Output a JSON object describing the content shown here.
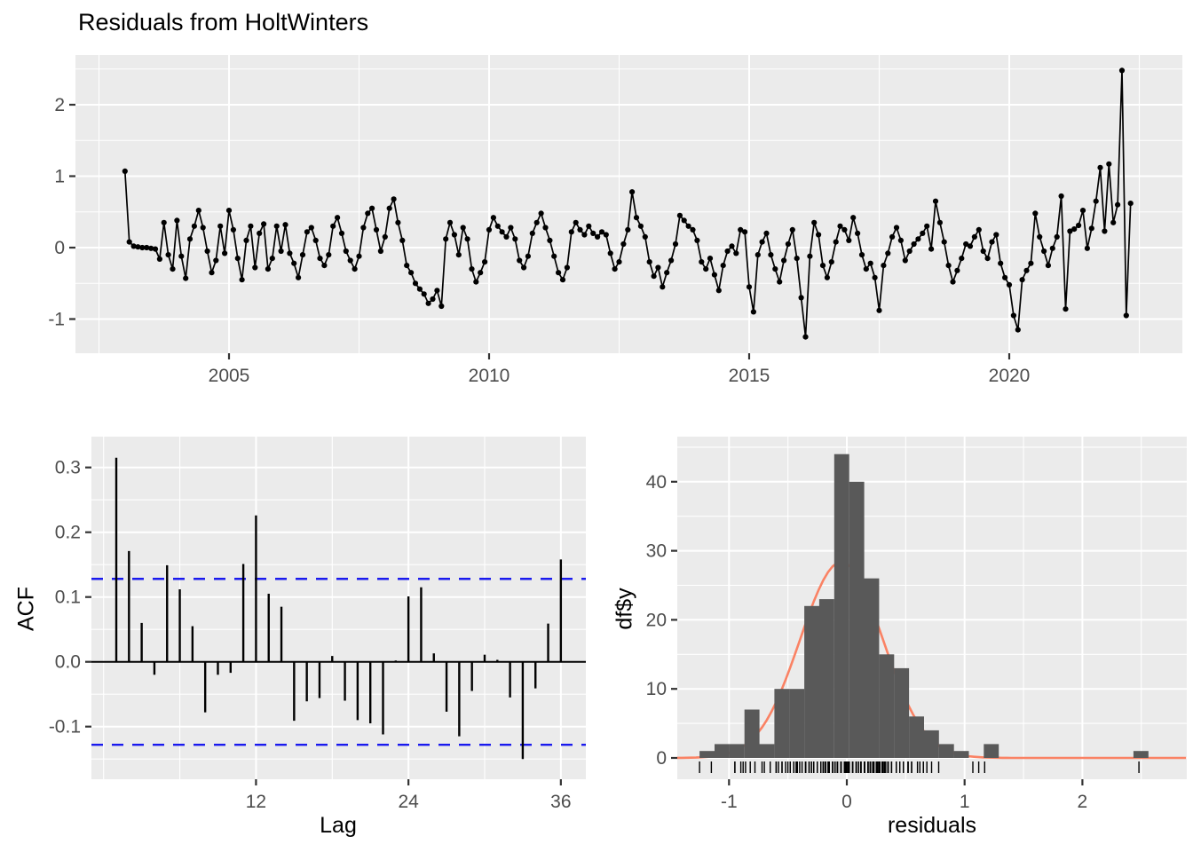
{
  "title": "Residuals from HoltWinters",
  "colors": {
    "panel_bg": "#EBEBEB",
    "grid": "#FFFFFF",
    "series": "#000000",
    "conf_line": "#1A1AEE",
    "hist_bar": "#595959",
    "normal_curve": "#FA8264",
    "axis_text": "#4D4D4D",
    "tick": "#333333"
  },
  "chart_data": [
    {
      "type": "line",
      "name": "residuals-time-series",
      "title": "Residuals from HoltWinters",
      "x_start": 2003.0,
      "x_step": 0.0833333,
      "x_ticks": [
        2005,
        2010,
        2015,
        2020
      ],
      "x_tick_labels": [
        "2005",
        "2010",
        "2015",
        "2020"
      ],
      "y_ticks": [
        -1,
        0,
        1,
        2
      ],
      "y_tick_labels": [
        "-1",
        "0",
        "1",
        "2"
      ],
      "xlim": [
        2002.05,
        2023.33
      ],
      "ylim": [
        -1.48,
        2.7
      ],
      "values": [
        1.07,
        0.08,
        0.02,
        0.01,
        0,
        0,
        -0.01,
        -0.02,
        -0.16,
        0.35,
        -0.1,
        -0.3,
        0.38,
        -0.12,
        -0.43,
        0.12,
        0.3,
        0.52,
        0.28,
        -0.05,
        -0.35,
        -0.18,
        0.3,
        -0.08,
        0.52,
        0.25,
        -0.15,
        -0.45,
        0.1,
        0.3,
        -0.28,
        0.2,
        0.33,
        -0.3,
        -0.15,
        0.3,
        -0.05,
        0.32,
        -0.08,
        -0.22,
        -0.42,
        -0.1,
        0.22,
        0.28,
        0.1,
        -0.15,
        -0.25,
        -0.1,
        0.3,
        0.42,
        0.2,
        -0.05,
        -0.18,
        -0.3,
        -0.12,
        0.28,
        0.48,
        0.55,
        0.25,
        -0.05,
        0.15,
        0.55,
        0.68,
        0.35,
        0.1,
        -0.25,
        -0.35,
        -0.5,
        -0.58,
        -0.65,
        -0.78,
        -0.72,
        -0.6,
        -0.82,
        0.12,
        0.35,
        0.18,
        -0.1,
        0.28,
        0.12,
        -0.3,
        -0.48,
        -0.35,
        -0.2,
        0.25,
        0.42,
        0.3,
        0.22,
        0.15,
        0.28,
        0.12,
        -0.18,
        -0.28,
        -0.12,
        0.2,
        0.35,
        0.48,
        0.28,
        0.1,
        -0.12,
        -0.35,
        -0.45,
        -0.28,
        0.22,
        0.35,
        0.25,
        0.18,
        0.3,
        0.2,
        0.15,
        0.22,
        0.18,
        -0.08,
        -0.3,
        -0.2,
        0.05,
        0.25,
        0.78,
        0.42,
        0.3,
        0.15,
        -0.2,
        -0.4,
        -0.28,
        -0.55,
        -0.35,
        -0.18,
        0.05,
        0.45,
        0.38,
        0.3,
        0.25,
        0.1,
        -0.2,
        -0.3,
        -0.15,
        -0.38,
        -0.6,
        -0.25,
        -0.05,
        0.02,
        -0.08,
        0.25,
        0.22,
        -0.55,
        -0.9,
        -0.1,
        0.08,
        0.2,
        -0.1,
        -0.3,
        -0.48,
        -0.18,
        0.05,
        0.25,
        -0.15,
        -0.7,
        -1.25,
        -0.12,
        0.35,
        0.18,
        -0.25,
        -0.42,
        -0.2,
        0.08,
        0.3,
        0.25,
        0.1,
        0.42,
        0.2,
        -0.1,
        -0.3,
        -0.22,
        -0.42,
        -0.88,
        -0.25,
        -0.08,
        0.15,
        0.28,
        0.1,
        -0.18,
        -0.05,
        0.05,
        0.12,
        0.2,
        0.3,
        -0.02,
        0.65,
        0.35,
        0.08,
        -0.25,
        -0.48,
        -0.32,
        -0.15,
        0.05,
        0.02,
        0.15,
        0.25,
        -0.05,
        -0.15,
        0.08,
        0.18,
        -0.22,
        -0.42,
        -0.52,
        -0.95,
        -1.15,
        -0.45,
        -0.32,
        -0.22,
        0.48,
        0.15,
        -0.05,
        -0.25,
        -0.01,
        0.15,
        0.72,
        -0.86,
        0.23,
        0.26,
        0.31,
        0.52,
        -0.01,
        0.27,
        0.65,
        1.12,
        0.23,
        1.17,
        0.35,
        0.6,
        2.48,
        -0.95,
        0.62
      ]
    },
    {
      "type": "bar",
      "name": "acf",
      "xlabel": "Lag",
      "ylabel": "ACF",
      "x_ticks": [
        12,
        24,
        36
      ],
      "x_tick_labels": [
        "12",
        "24",
        "36"
      ],
      "y_ticks": [
        -0.1,
        0.0,
        0.1,
        0.2,
        0.3
      ],
      "y_tick_labels": [
        "-0.1",
        "0.0",
        "0.1",
        "0.2",
        "0.3"
      ],
      "conf_level": 0.128,
      "xlim": [
        -0.9,
        38.2
      ],
      "ylim": [
        -0.177,
        0.347
      ],
      "lags": [
        1,
        2,
        3,
        4,
        5,
        6,
        7,
        8,
        9,
        10,
        11,
        12,
        13,
        14,
        15,
        16,
        17,
        18,
        19,
        20,
        21,
        22,
        23,
        24,
        25,
        26,
        27,
        28,
        29,
        30,
        31,
        32,
        33,
        34,
        35,
        36
      ],
      "values": [
        0.315,
        0.171,
        0.06,
        -0.02,
        0.149,
        0.112,
        0.055,
        -0.078,
        -0.02,
        -0.017,
        0.151,
        0.226,
        0.105,
        0.085,
        -0.091,
        -0.061,
        -0.056,
        0.009,
        -0.06,
        -0.09,
        -0.095,
        -0.112,
        0.002,
        0.101,
        0.115,
        0.013,
        -0.077,
        -0.115,
        -0.045,
        0.011,
        0.003,
        -0.055,
        -0.15,
        -0.041,
        0.059,
        0.158
      ]
    },
    {
      "type": "histogram",
      "name": "residuals-histogram",
      "xlabel": "residuals",
      "ylabel": "df$y",
      "x_ticks": [
        -1,
        0,
        1,
        2
      ],
      "x_tick_labels": [
        "-1",
        "0",
        "1",
        "2"
      ],
      "y_ticks": [
        0,
        10,
        20,
        30,
        40
      ],
      "y_tick_labels": [
        "0",
        "10",
        "20",
        "30",
        "40"
      ],
      "bin_start": -1.25,
      "bin_width": 0.127,
      "counts": [
        1,
        2,
        2,
        7,
        2,
        10,
        10,
        22,
        23,
        44,
        40,
        26,
        15,
        13,
        6,
        4,
        2,
        1,
        0,
        2,
        0,
        0,
        0,
        0,
        0,
        0,
        0,
        0,
        0,
        1
      ],
      "curve": {
        "mean": -0.045,
        "sd": 0.35,
        "peak": 28.4
      },
      "xlim": [
        -1.44,
        2.89
      ],
      "ylim": [
        -3.2,
        46.5
      ]
    }
  ]
}
